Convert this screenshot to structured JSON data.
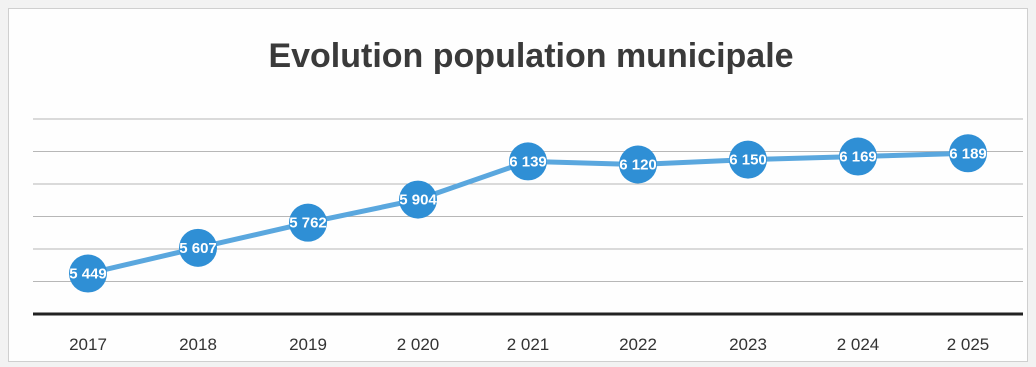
{
  "chart_data": {
    "type": "line",
    "title": "Evolution population municipale",
    "xlabel": "",
    "ylabel": "",
    "categories": [
      "2017",
      "2018",
      "2019",
      "2 020",
      "2 021",
      "2022",
      "2023",
      "2 024",
      "2 025"
    ],
    "series": [
      {
        "values": [
          5449,
          5607,
          5762,
          5904,
          6139,
          6120,
          6150,
          6169,
          6189
        ],
        "data_labels": [
          "5 449",
          "5 607",
          "5 762",
          "5 904",
          "6 139",
          "6 120",
          "6 150",
          "6 169",
          "6 189"
        ]
      }
    ],
    "ylim": [
      5200,
      6400
    ],
    "grid": true,
    "legend": "none",
    "colors": {
      "line": "#5aa7de",
      "marker": "#2f8fd5",
      "gridline": "#b7b7b7",
      "axis": "#222222",
      "data_label_text": "#ffffff",
      "title_text": "#3a3a3a"
    }
  }
}
